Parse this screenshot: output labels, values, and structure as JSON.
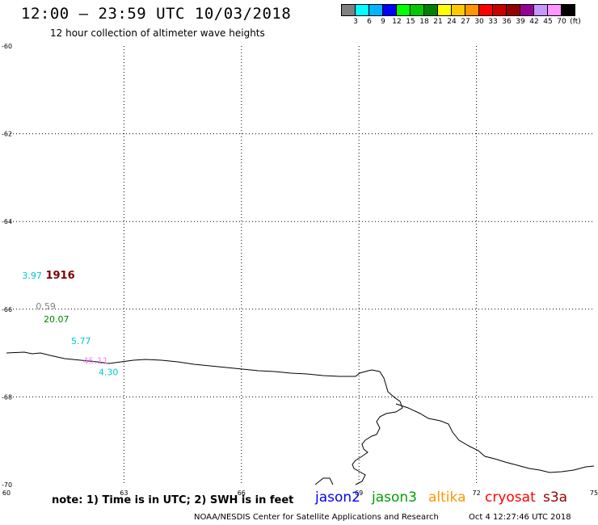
{
  "title": "12:00 – 23:59 UTC 10/03/2018",
  "subtitle": "12 hour collection of altimeter wave heights",
  "color_scale": {
    "colors": [
      "#808080",
      "#00ffff",
      "#00b4ff",
      "#0000ff",
      "#00ff00",
      "#00c800",
      "#008000",
      "#ffff00",
      "#ffc800",
      "#ff9600",
      "#ff0000",
      "#c80000",
      "#960000",
      "#960096",
      "#c896ff",
      "#ff96ff",
      "#000000"
    ],
    "labels": [
      "3",
      "6",
      "9",
      "12",
      "15",
      "18",
      "21",
      "24",
      "27",
      "30",
      "33",
      "36",
      "39",
      "42",
      "45",
      "70",
      "(ft)"
    ]
  },
  "chart_data": {
    "type": "scatter",
    "xlim": [
      60,
      75
    ],
    "ylim": [
      -70,
      -60
    ],
    "x_ticks": [
      "60",
      "63",
      "66",
      "69",
      "72",
      "75"
    ],
    "y_ticks": [
      "-60",
      "-62",
      "-64",
      "-66",
      "-68",
      "-70"
    ],
    "points": [
      {
        "label": "3.97",
        "lon": 60.4,
        "lat": -65.3,
        "color": "#00c8c8"
      },
      {
        "label": "1916",
        "lon": 61.0,
        "lat": -65.3,
        "color": "#800000"
      },
      {
        "label": "0.59",
        "lon": 60.75,
        "lat": -66.0,
        "color": "#808080"
      },
      {
        "label": "20.07",
        "lon": 60.95,
        "lat": -66.3,
        "color": "#008000"
      },
      {
        "label": "5.77",
        "lon": 61.65,
        "lat": -66.8,
        "color": "#00c8c8"
      },
      {
        "label": "45.11",
        "lon": 61.95,
        "lat": -67.25,
        "color": "#ff80ff"
      },
      {
        "label": "4.30",
        "lon": 62.35,
        "lat": -67.5,
        "color": "#00c8c8"
      }
    ]
  },
  "note": "note: 1) Time is in UTC; 2) SWH is in feet",
  "legend": [
    {
      "label": "jason2",
      "color": "#0000ff"
    },
    {
      "label": "jason3",
      "color": "#00a000"
    },
    {
      "label": "altika",
      "color": "#ff9600"
    },
    {
      "label": "cryosat",
      "color": "#ff0000"
    },
    {
      "label": "s3a",
      "color": "#960000"
    }
  ],
  "credit": "NOAA/NESDIS Center for Satellite Applications and Research",
  "timestamp": "Oct  4 12:27:46 UTC 2018"
}
